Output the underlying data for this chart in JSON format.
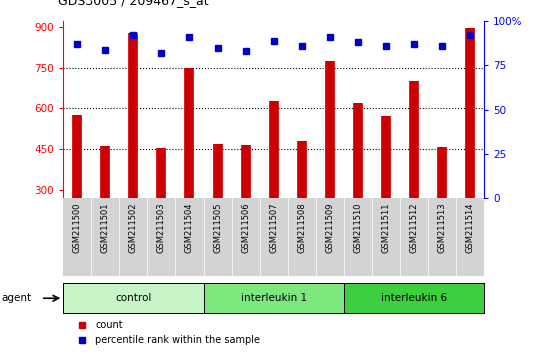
{
  "title": "GDS3005 / 209467_s_at",
  "samples": [
    "GSM211500",
    "GSM211501",
    "GSM211502",
    "GSM211503",
    "GSM211504",
    "GSM211505",
    "GSM211506",
    "GSM211507",
    "GSM211508",
    "GSM211509",
    "GSM211510",
    "GSM211511",
    "GSM211512",
    "GSM211513",
    "GSM211514"
  ],
  "counts": [
    575,
    462,
    875,
    455,
    748,
    470,
    467,
    628,
    480,
    775,
    618,
    572,
    700,
    460,
    895
  ],
  "percentiles": [
    87,
    84,
    92,
    82,
    91,
    85,
    83,
    89,
    86,
    91,
    88,
    86,
    87,
    86,
    92
  ],
  "group_info": [
    {
      "name": "control",
      "start": 0,
      "end": 4,
      "color": "#c8f5c8"
    },
    {
      "name": "interleukin 1",
      "start": 5,
      "end": 9,
      "color": "#7de87d"
    },
    {
      "name": "interleukin 6",
      "start": 10,
      "end": 14,
      "color": "#3ecf3e"
    }
  ],
  "bar_color": "#CC0000",
  "dot_color": "#0000CC",
  "ylim_left": [
    270,
    920
  ],
  "ylim_right": [
    0,
    100
  ],
  "yticks_left": [
    300,
    450,
    600,
    750,
    900
  ],
  "ytick_labels_left": [
    "300",
    "450",
    "600",
    "750",
    "900"
  ],
  "yticks_right": [
    0,
    25,
    50,
    75,
    100
  ],
  "ytick_labels_right": [
    "0",
    "25",
    "50",
    "75",
    "100%"
  ],
  "grid_values": [
    450,
    600,
    750
  ],
  "background_color": "#ffffff",
  "plot_bg_color": "#ffffff",
  "label_count": "count",
  "label_percentile": "percentile rank within the sample",
  "agent_label": "agent"
}
